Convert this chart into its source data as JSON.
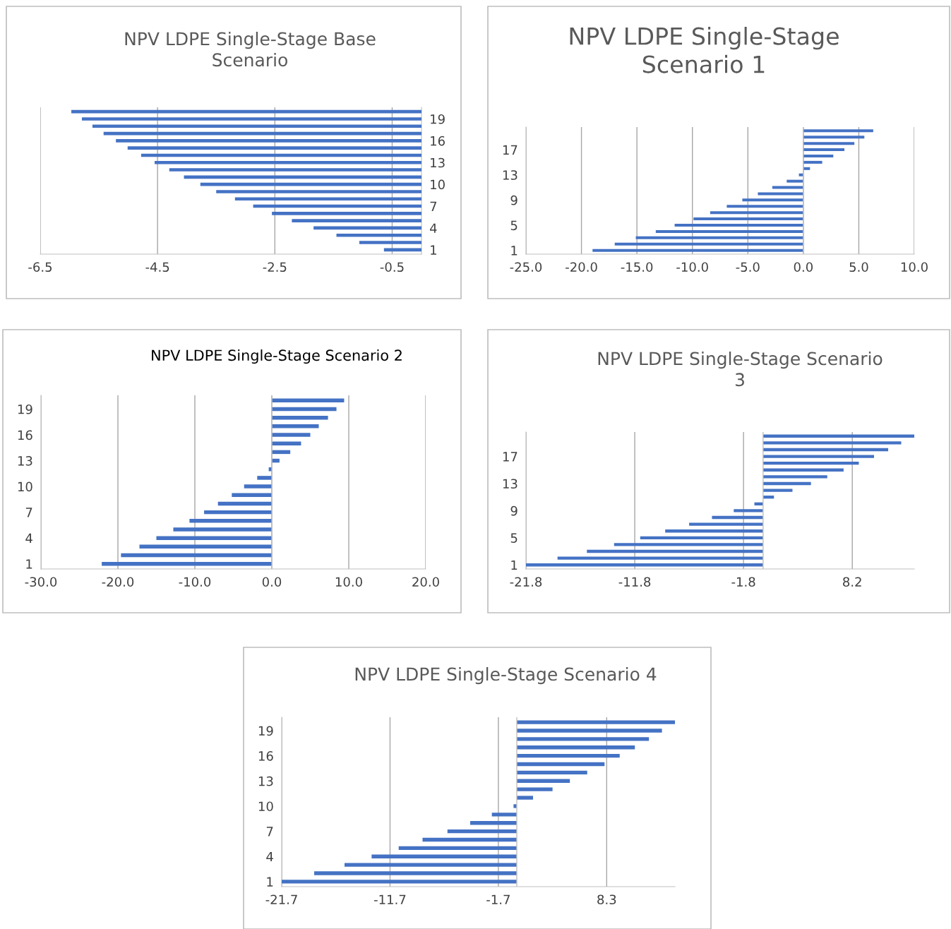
{
  "chart_data": [
    {
      "type": "bar",
      "orientation": "horizontal",
      "title": "NPV LDPE Single-Stage Base\nScenario",
      "categories": [
        null,
        "19",
        null,
        null,
        "16",
        null,
        null,
        "13",
        null,
        null,
        "10",
        null,
        null,
        "7",
        null,
        null,
        "4",
        null,
        null,
        "1"
      ],
      "series": [
        {
          "color": "#4472c4",
          "values": [
            -5.97,
            -5.79,
            -5.61,
            -5.42,
            -5.21,
            -5.01,
            -4.78,
            -4.55,
            -4.3,
            -4.05,
            -3.77,
            -3.5,
            -3.18,
            -2.87,
            -2.55,
            -2.21,
            -1.84,
            -1.45,
            -1.06,
            -0.64
          ]
        }
      ],
      "xlim": [
        -6.5,
        0
      ],
      "xticks": [
        -6.5,
        -4.5,
        -2.5,
        -0.5
      ],
      "grid": "x"
    },
    {
      "type": "bar",
      "orientation": "horizontal",
      "title": "NPV LDPE Single-Stage\nScenario 1",
      "categories": [
        null,
        null,
        null,
        "17",
        null,
        null,
        null,
        "13",
        null,
        null,
        null,
        "9",
        null,
        null,
        null,
        "5",
        null,
        null,
        null,
        "1"
      ],
      "series": [
        {
          "color": "#4472c4",
          "values": [
            6.3,
            5.5,
            4.6,
            3.7,
            2.7,
            1.7,
            0.6,
            -0.4,
            -1.5,
            -2.8,
            -4.1,
            -5.5,
            -6.9,
            -8.4,
            -9.9,
            -11.6,
            -13.3,
            -15.1,
            -17.0,
            -19.0
          ]
        }
      ],
      "xlim": [
        -25.0,
        10.0
      ],
      "xticks": [
        {
          "value": -25,
          "label": "-25.0"
        },
        {
          "value": -20,
          "label": "-20.0"
        },
        {
          "value": -15,
          "label": "-15.0"
        },
        {
          "value": -10,
          "label": "-10.0"
        },
        {
          "value": -5,
          "label": "-5.0"
        },
        {
          "value": 0,
          "label": "0.0"
        },
        {
          "value": 5,
          "label": "5.0"
        },
        {
          "value": 10,
          "label": "10.0"
        }
      ],
      "grid": "x"
    },
    {
      "type": "bar",
      "orientation": "horizontal",
      "title": "NPV LDPE Single-Stage Scenario 2",
      "categories": [
        null,
        "19",
        null,
        null,
        "16",
        null,
        null,
        "13",
        null,
        null,
        "10",
        null,
        null,
        "7",
        null,
        null,
        "4",
        null,
        null,
        "1"
      ],
      "series": [
        {
          "color": "#4472c4",
          "values": [
            9.4,
            8.4,
            7.3,
            6.1,
            5.0,
            3.8,
            2.4,
            1.0,
            -0.4,
            -1.9,
            -3.6,
            -5.2,
            -7.0,
            -8.8,
            -10.7,
            -12.8,
            -15.0,
            -17.2,
            -19.6,
            -22.1
          ]
        }
      ],
      "xlim": [
        -30.0,
        20.0
      ],
      "xticks": [
        {
          "value": -30,
          "label": "-30.0"
        },
        {
          "value": -20,
          "label": "-20.0"
        },
        {
          "value": -10,
          "label": "-10.0"
        },
        {
          "value": 0,
          "label": "0.0"
        },
        {
          "value": 10,
          "label": "10.0"
        },
        {
          "value": 20,
          "label": "20.0"
        }
      ],
      "grid": "x"
    },
    {
      "type": "bar",
      "orientation": "horizontal",
      "title": "NPV LDPE Single-Stage Scenario\n3",
      "categories": [
        null,
        null,
        null,
        "17",
        null,
        null,
        null,
        "13",
        null,
        null,
        null,
        "9",
        null,
        null,
        null,
        "5",
        null,
        null,
        null,
        "1"
      ],
      "series": [
        {
          "color": "#4472c4",
          "values": [
            13.9,
            12.7,
            11.5,
            10.2,
            8.8,
            7.4,
            5.9,
            4.4,
            2.7,
            1.0,
            -0.8,
            -2.7,
            -4.7,
            -6.8,
            -9.0,
            -11.3,
            -13.7,
            -16.2,
            -18.9,
            -21.8
          ]
        }
      ],
      "xlim": [
        -21.8,
        13.9
      ],
      "xticks": [
        -21.8,
        -11.8,
        -1.8,
        8.2
      ],
      "grid": "x"
    },
    {
      "type": "bar",
      "orientation": "horizontal",
      "title": "NPV LDPE Single-Stage Scenario 4",
      "categories": [
        null,
        "19",
        null,
        null,
        "16",
        null,
        null,
        "13",
        null,
        null,
        "10",
        null,
        null,
        "7",
        null,
        null,
        "4",
        null,
        null,
        "1"
      ],
      "series": [
        {
          "color": "#4472c4",
          "values": [
            14.6,
            13.4,
            12.2,
            10.9,
            9.5,
            8.1,
            6.5,
            4.9,
            3.3,
            1.5,
            -0.3,
            -2.3,
            -4.3,
            -6.4,
            -8.7,
            -10.9,
            -13.4,
            -15.9,
            -18.7,
            -21.7
          ]
        }
      ],
      "xlim": [
        -21.7,
        14.6
      ],
      "xticks": [
        -21.7,
        -11.7,
        -1.7,
        8.3
      ],
      "grid": "x"
    }
  ]
}
